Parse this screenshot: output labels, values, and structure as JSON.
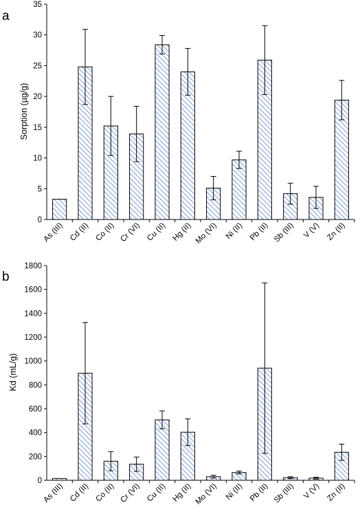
{
  "chart_data": [
    {
      "type": "bar",
      "panel_label": "a",
      "ylabel": "Sorption (µg/g)",
      "ylim": [
        0,
        35
      ],
      "yticks": [
        0,
        5,
        10,
        15,
        20,
        25,
        30,
        35
      ],
      "categories": [
        "As (III)",
        "Cd (II)",
        "Co (II)",
        "Cr (VI)",
        "Cu (II)",
        "Hg (II)",
        "Mo (VI)",
        "Ni (II)",
        "Pb (II)",
        "Sb (III)",
        "V (V)",
        "Zn (II)"
      ],
      "values": [
        3.3,
        24.8,
        15.2,
        13.9,
        28.4,
        24.0,
        5.1,
        9.7,
        25.9,
        4.2,
        3.6,
        19.4
      ],
      "errors": [
        0,
        6.1,
        4.8,
        4.5,
        1.5,
        3.8,
        1.9,
        1.4,
        5.6,
        1.7,
        1.8,
        3.2
      ],
      "grid": false,
      "fill_color": "#8faadc"
    },
    {
      "type": "bar",
      "panel_label": "b",
      "ylabel": "Kd (mL/g)",
      "ylim": [
        0,
        1800
      ],
      "yticks": [
        0,
        200,
        400,
        600,
        800,
        1000,
        1200,
        1400,
        1600,
        1800
      ],
      "categories": [
        "As (III)",
        "Cd (II)",
        "Co (II)",
        "Cr (VI)",
        "Cu (II)",
        "Hg (II)",
        "Mo (VI)",
        "Ni (II)",
        "Pb (II)",
        "Sb (III)",
        "V (V)",
        "Zn (II)"
      ],
      "values": [
        15,
        898,
        160,
        135,
        507,
        403,
        30,
        65,
        940,
        22,
        18,
        235
      ],
      "errors": [
        0,
        425,
        80,
        60,
        75,
        112,
        12,
        12,
        715,
        8,
        8,
        68
      ],
      "grid": false,
      "fill_color": "#8faadc"
    }
  ]
}
